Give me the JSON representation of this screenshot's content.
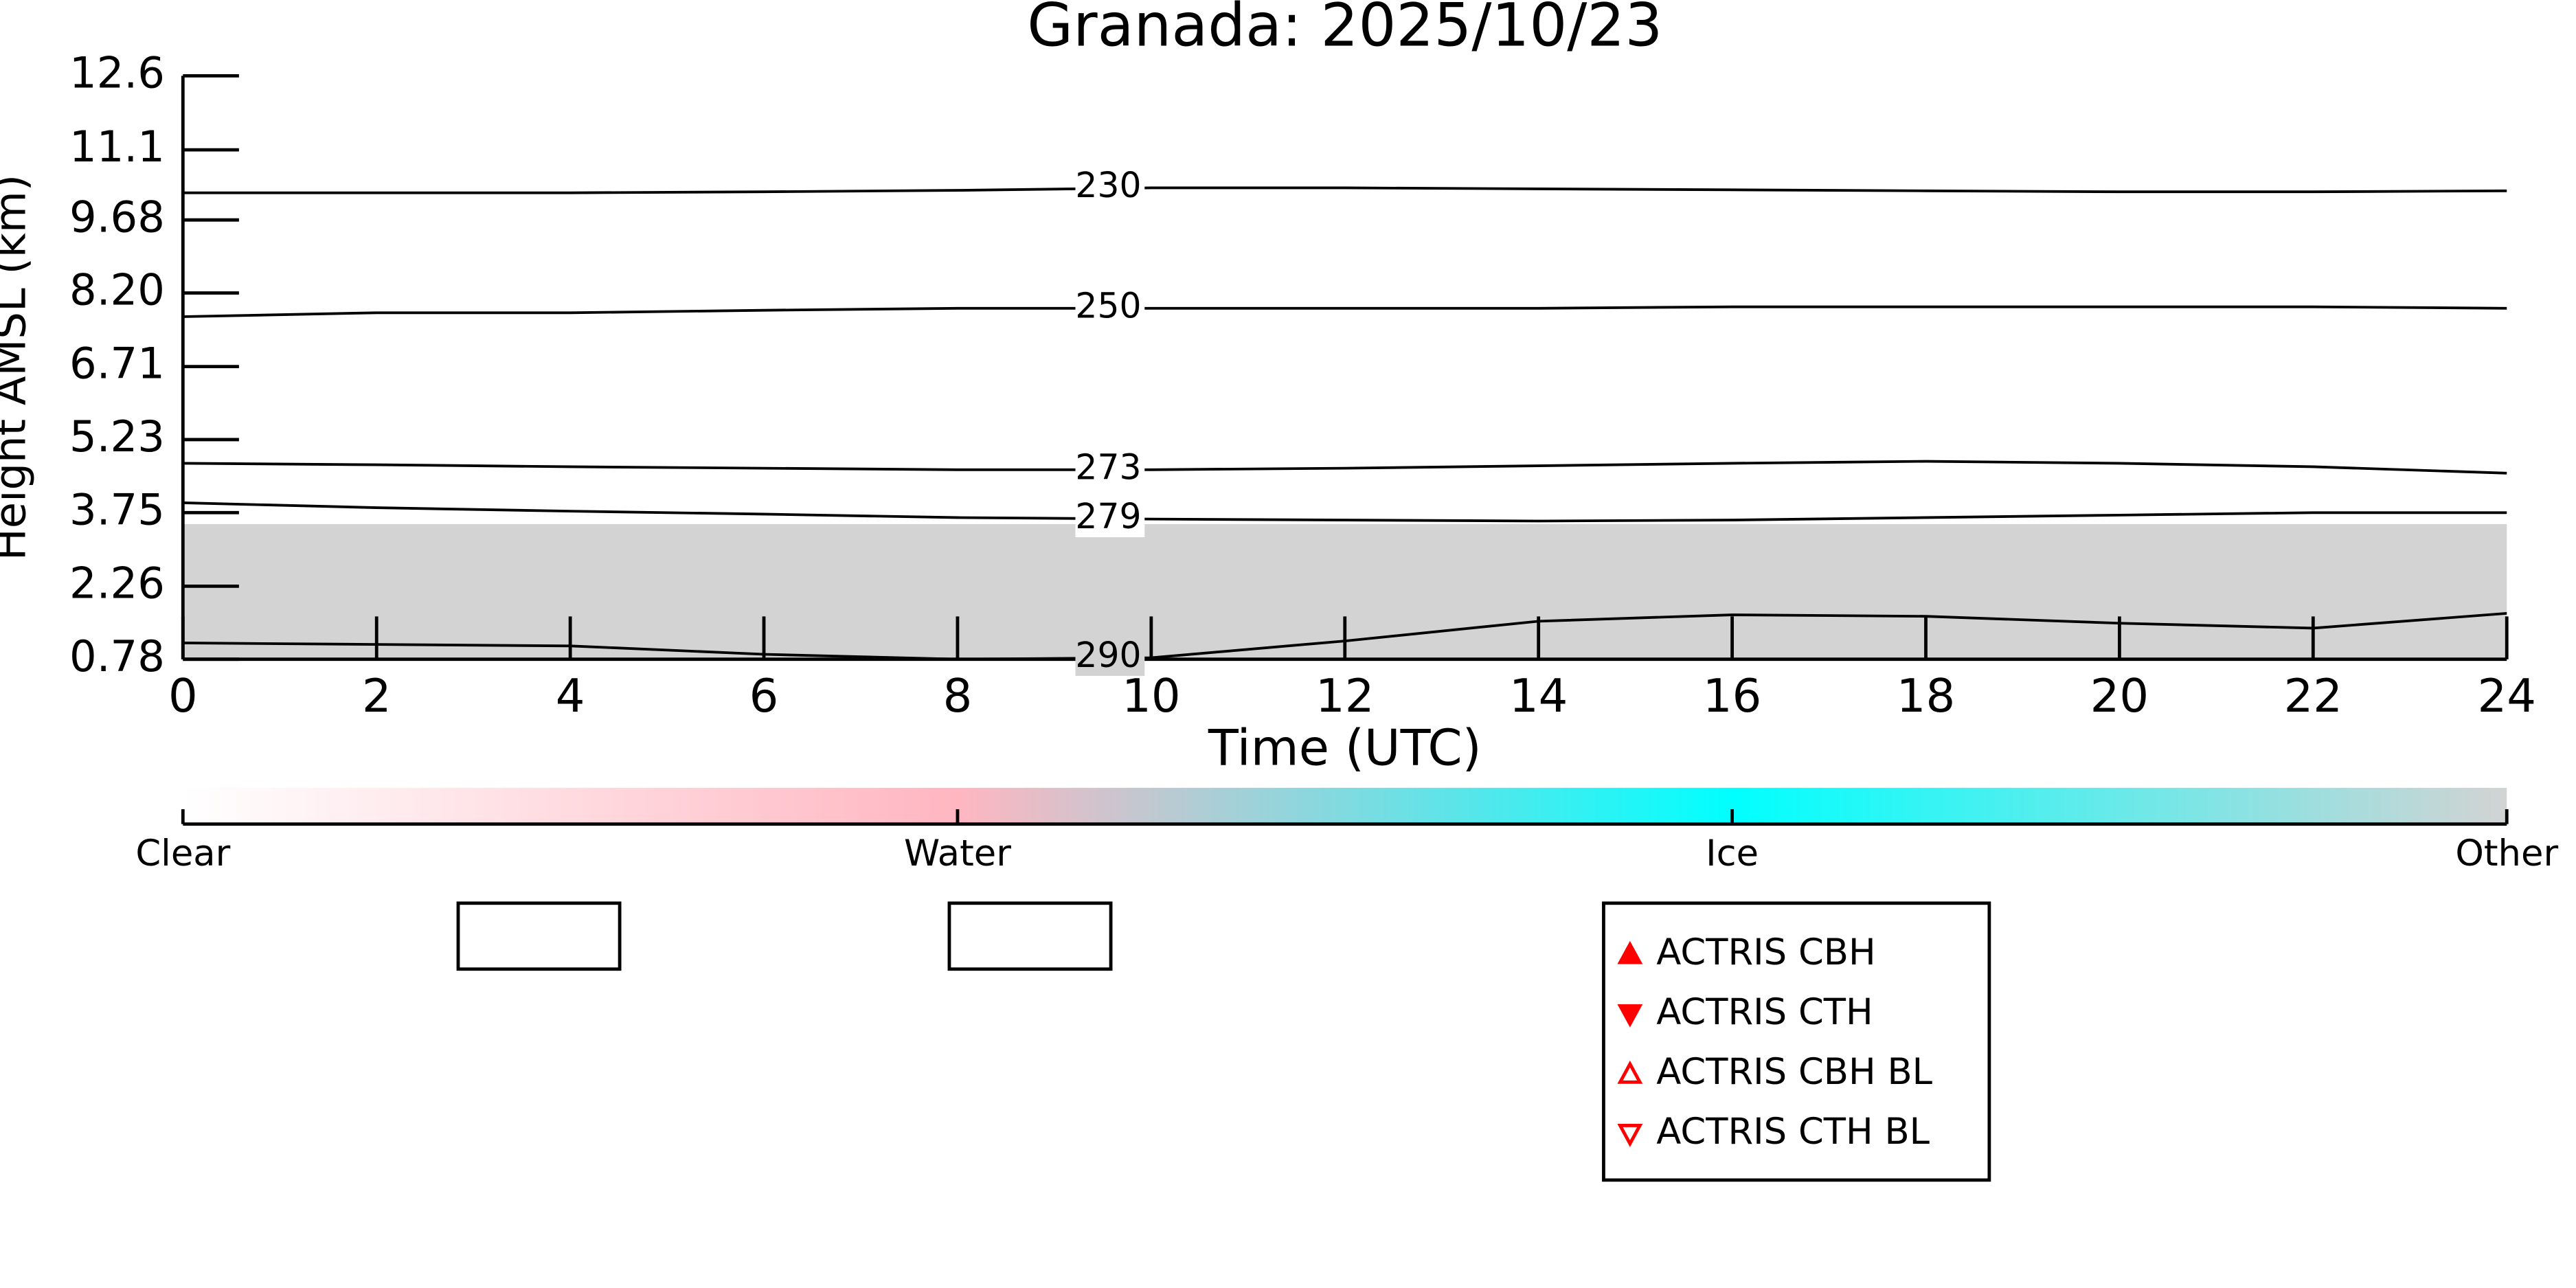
{
  "chart_data": {
    "type": "line",
    "title": "Granada: 2025/10/23",
    "x_label": "Time (UTC)",
    "y_label": "Height AMSL (km)",
    "xlim": [
      0,
      24
    ],
    "xticks": [
      0,
      2,
      4,
      6,
      8,
      10,
      12,
      14,
      16,
      18,
      20,
      22,
      24
    ],
    "ylim": [
      0.78,
      12.6
    ],
    "yticks": [
      {
        "value": 0.78,
        "label": "0.78"
      },
      2.26,
      3.75,
      5.23,
      6.71,
      {
        "value": 8.2,
        "label": "8.20"
      },
      9.68,
      11.1,
      12.6
    ],
    "x": [
      0,
      2,
      4,
      6,
      8,
      10,
      12,
      14,
      16,
      18,
      20,
      22,
      24
    ],
    "series": [
      {
        "name": "230",
        "color": "#000000",
        "values": [
          10.23,
          10.23,
          10.23,
          10.25,
          10.28,
          10.33,
          10.33,
          10.31,
          10.29,
          10.27,
          10.25,
          10.25,
          10.27
        ]
      },
      {
        "name": "250",
        "color": "#000000",
        "values": [
          7.72,
          7.8,
          7.8,
          7.85,
          7.89,
          7.89,
          7.89,
          7.89,
          7.92,
          7.92,
          7.92,
          7.92,
          7.89
        ]
      },
      {
        "name": "273",
        "color": "#000000",
        "values": [
          4.75,
          4.72,
          4.68,
          4.65,
          4.62,
          4.62,
          4.65,
          4.7,
          4.75,
          4.79,
          4.75,
          4.68,
          4.55
        ]
      },
      {
        "name": "279",
        "color": "#000000",
        "values": [
          3.95,
          3.85,
          3.78,
          3.72,
          3.65,
          3.62,
          3.6,
          3.58,
          3.6,
          3.65,
          3.7,
          3.75,
          3.75
        ]
      },
      {
        "name": "290",
        "color": "#000000",
        "values": [
          1.11,
          1.08,
          1.05,
          0.88,
          0.78,
          0.81,
          1.15,
          1.55,
          1.68,
          1.65,
          1.51,
          1.41,
          1.71
        ]
      }
    ],
    "colorbar": {
      "labels": [
        "Clear",
        "Water",
        "Ice",
        "Other"
      ],
      "colors": [
        "#ffffff",
        "#ffb6c1",
        "#00ffff",
        "#d3d3d3"
      ]
    },
    "legend_entries": [
      {
        "label": "ACTRIS CBH",
        "color": "#ff0000",
        "marker": "triangle-up-filled"
      },
      {
        "label": "ACTRIS CTH",
        "color": "#ff0000",
        "marker": "triangle-down-filled"
      },
      {
        "label": "ACTRIS CBH BL",
        "color": "#ff0000",
        "marker": "triangle-up-open"
      },
      {
        "label": "ACTRIS CTH BL",
        "color": "#ff0000",
        "marker": "triangle-down-open"
      }
    ]
  }
}
